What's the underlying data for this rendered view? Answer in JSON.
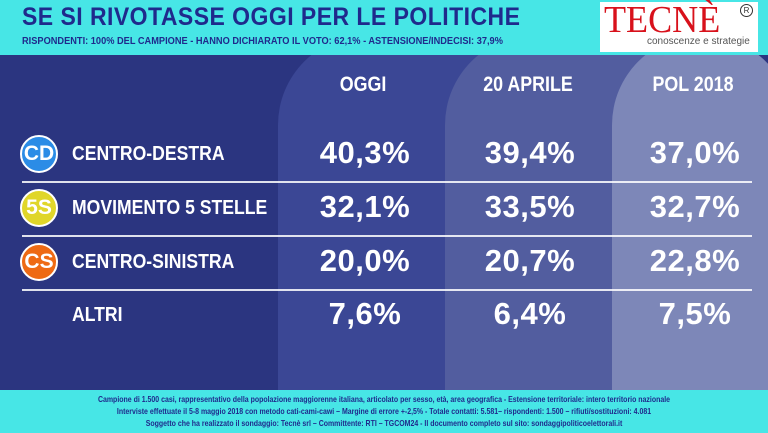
{
  "header": {
    "title": "SE SI RIVOTASSE OGGI PER LE POLITICHE",
    "subtitle": "RISPONDENTI: 100% DEL CAMPIONE - HANNO DICHIARATO IL VOTO: 62,1% - ASTENSIONE/INDECISI: 37,9%"
  },
  "logo": {
    "name": "TECNÈ",
    "reg": "R",
    "tagline": "conoscenze e strategie"
  },
  "chart_data": {
    "type": "table",
    "columns": [
      "OGGI",
      "20 APRILE",
      "POL 2018"
    ],
    "rows": [
      {
        "badge": "CD",
        "label": "CENTRO-DESTRA",
        "values": [
          "40,3%",
          "39,4%",
          "37,0%"
        ],
        "numeric": [
          40.3,
          39.4,
          37.0
        ],
        "color": "#2b8ce6"
      },
      {
        "badge": "5S",
        "label": "MOVIMENTO 5 STELLE",
        "values": [
          "32,1%",
          "33,5%",
          "32,7%"
        ],
        "numeric": [
          32.1,
          33.5,
          32.7
        ],
        "color": "#e0d62a"
      },
      {
        "badge": "CS",
        "label": "CENTRO-SINISTRA",
        "values": [
          "20,0%",
          "20,7%",
          "22,8%"
        ],
        "numeric": [
          20.0,
          20.7,
          22.8
        ],
        "color": "#ee6a14"
      },
      {
        "badge": "",
        "label": "ALTRI",
        "values": [
          "7,6%",
          "6,4%",
          "7,5%"
        ],
        "numeric": [
          7.6,
          6.4,
          7.5
        ]
      }
    ]
  },
  "footer": {
    "line1": "Campione di 1.500 casi, rappresentativo della popolazione maggiorenne italiana, articolato per sesso, età, area geografica - Estensione territoriale: intero territorio nazionale",
    "line2": "Interviste effettuate il 5-8 maggio 2018 con metodo cati-cami-cawi  –  Margine di errore +-2,5%  - Totale contatti: 5.581– rispondenti: 1.500 – rifiuti/sostituzioni:  4.081",
    "line3": "Soggetto che ha realizzato il sondaggio: Tecnè srl – Committente: RTI – TGCOM24 - Il documento completo sul sito: sondaggipoliticoelettorali.it"
  }
}
